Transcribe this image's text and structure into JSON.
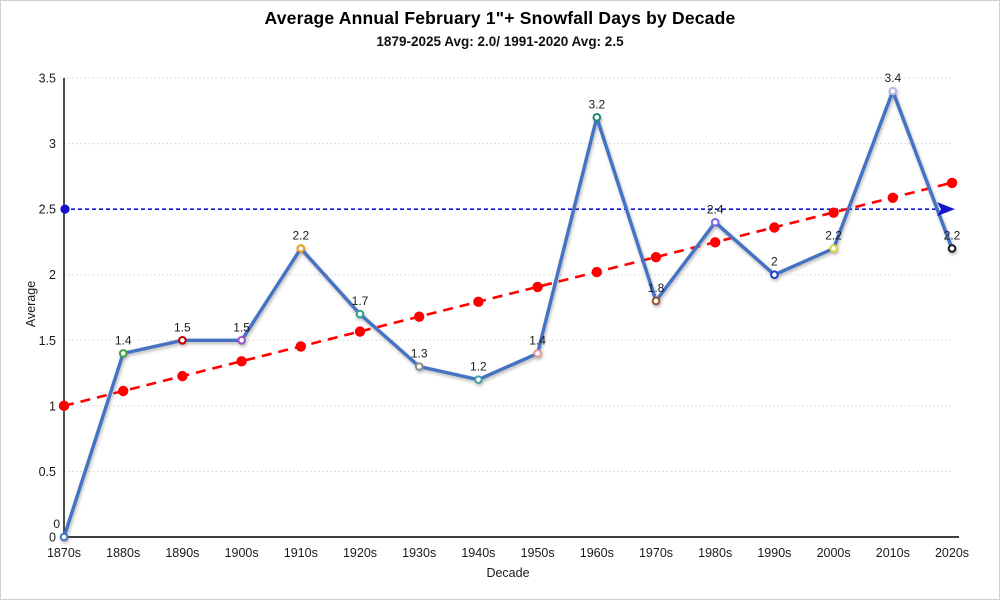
{
  "title": "Average Annual February 1\"+ Snowfall Days by Decade",
  "subtitle": "1879-2025 Avg: 2.0/ 1991-2020 Avg: 2.5",
  "chart_data": {
    "type": "line",
    "title": "Average Annual February 1\"+ Snowfall Days by Decade",
    "subtitle": "1879-2025 Avg: 2.0/ 1991-2020 Avg: 2.5",
    "xlabel": "Decade",
    "ylabel": "Average",
    "ylim": [
      0,
      3.5
    ],
    "yticks": [
      "0",
      "0.5",
      "1",
      "1.5",
      "2",
      "2.5",
      "3",
      "3.5"
    ],
    "grid": "horizontal-dotted",
    "legend": "none",
    "categories": [
      "1870s",
      "1880s",
      "1890s",
      "1900s",
      "1910s",
      "1920s",
      "1930s",
      "1940s",
      "1950s",
      "1960s",
      "1970s",
      "1980s",
      "1990s",
      "2000s",
      "2010s",
      "2020s"
    ],
    "series": [
      {
        "name": "average-snowfall-days",
        "type": "line",
        "color": "#4472C4",
        "values": [
          0,
          1.4,
          1.5,
          1.5,
          2.2,
          1.7,
          1.3,
          1.2,
          1.4,
          3.2,
          1.8,
          2.4,
          2.0,
          2.2,
          3.4,
          2.2
        ],
        "point_labels": [
          "0",
          "1.4",
          "1.5",
          "1.5",
          "2.2",
          "1.7",
          "1.3",
          "1.2",
          "1.4",
          "3.2",
          "1.8",
          "2.4",
          "2",
          "2.2",
          "3.4",
          "2.2"
        ],
        "marker_colors": [
          "#4472C4",
          "#3FA33F",
          "#C00000",
          "#A050C8",
          "#E8971E",
          "#2E9E8F",
          "#8C8C8C",
          "#3FA0A8",
          "#E89898",
          "#1F8A70",
          "#A0522D",
          "#7B68EE",
          "#2040CC",
          "#DCD23C",
          "#B4B4DC",
          "#1A1A1A"
        ]
      },
      {
        "name": "linear-trend",
        "type": "trendline",
        "color": "#FF0000",
        "style": "dashed",
        "start_value": 1.0,
        "end_value": 2.7
      },
      {
        "name": "reference-1991-2020-average",
        "type": "refline",
        "color": "#1414CC",
        "style": "dashed",
        "value": 2.5
      }
    ]
  },
  "colors": {
    "series_line": "#4472C4",
    "trend_line": "#FF0000",
    "ref_line": "#1414CC",
    "gridline": "#cfcfcf",
    "axis": "#000000",
    "label_text": "#1a1a1a"
  }
}
